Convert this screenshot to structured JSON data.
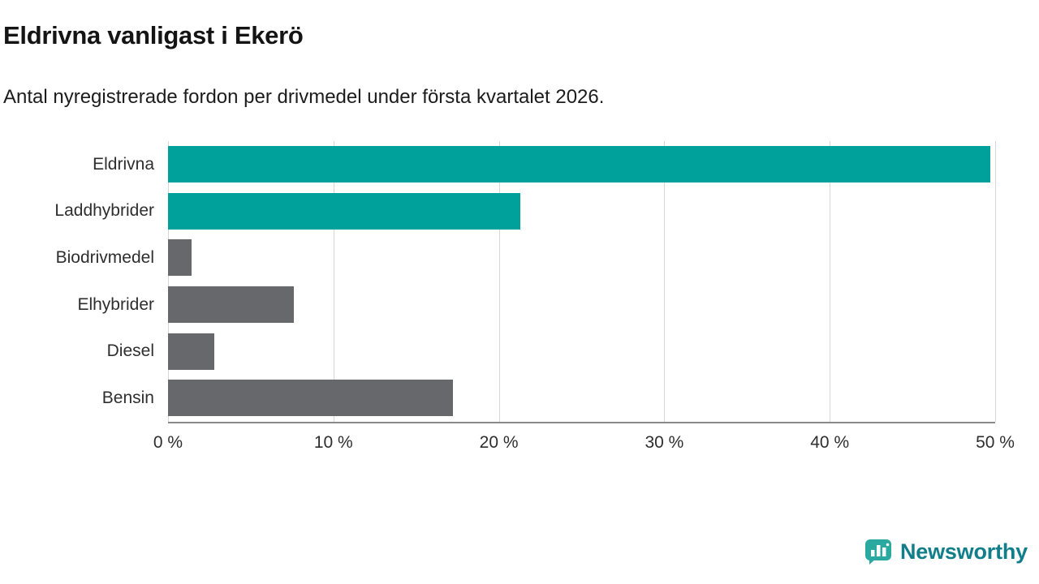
{
  "chart_data": {
    "type": "bar",
    "orientation": "horizontal",
    "title": "Eldrivna vanligast i Ekerö",
    "subtitle": "Antal nyregistrerade fordon per drivmedel under första kvartalet 2026.",
    "categories": [
      "Eldrivna",
      "Laddhybrider",
      "Biodrivmedel",
      "Elhybrider",
      "Diesel",
      "Bensin"
    ],
    "values": [
      49.7,
      21.3,
      1.4,
      7.6,
      2.8,
      17.2
    ],
    "unit": "%",
    "colors": [
      "#00a19a",
      "#00a19a",
      "#67686c",
      "#67686c",
      "#67686c",
      "#67686c"
    ],
    "xlim": [
      0,
      50
    ],
    "xticks": [
      0,
      10,
      20,
      30,
      40,
      50
    ],
    "xtick_suffix": " %",
    "grid": "vertical",
    "legend": "none",
    "accent_color": "#00a19a",
    "bar_gray_color": "#67686c"
  },
  "brand": {
    "name": "Newsworthy",
    "text_color": "#117e89",
    "icon_color": "#2aa9a1"
  }
}
